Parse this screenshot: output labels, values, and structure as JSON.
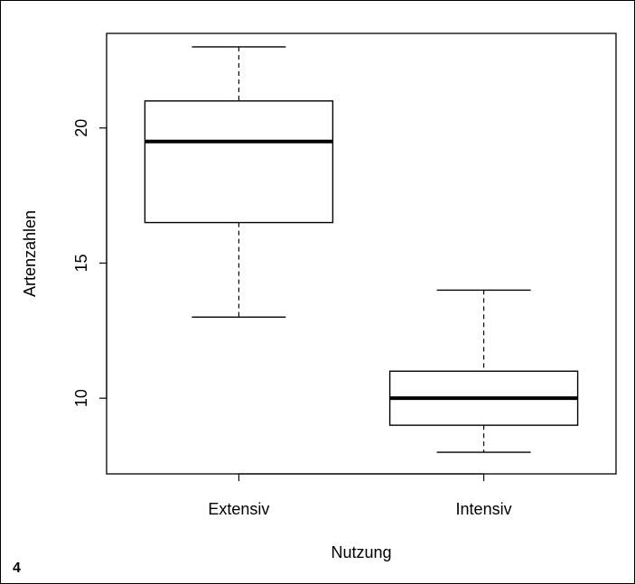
{
  "panel_label": "4",
  "chart_data": {
    "type": "boxplot",
    "xlabel": "Nutzung",
    "ylabel": "Artenzahlen",
    "ylim": [
      7.2,
      23.5
    ],
    "yticks": [
      10,
      15,
      20
    ],
    "categories": [
      "Extensiv",
      "Intensiv"
    ],
    "boxes": [
      {
        "category": "Extensiv",
        "whisker_low": 13,
        "q1": 16.5,
        "median": 19.5,
        "q3": 21,
        "whisker_high": 23
      },
      {
        "category": "Intensiv",
        "whisker_low": 8,
        "q1": 9,
        "median": 10,
        "q3": 11,
        "whisker_high": 14
      }
    ],
    "grid": false,
    "legend": "none"
  }
}
